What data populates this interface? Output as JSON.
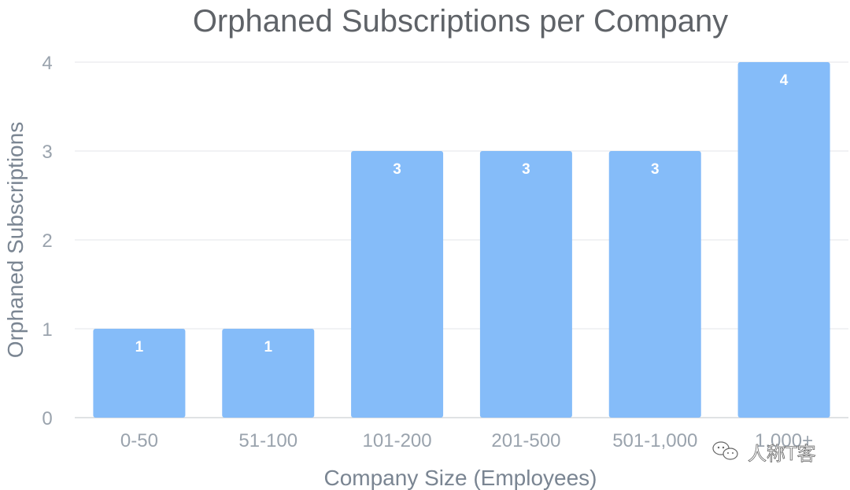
{
  "chart_data": {
    "type": "bar",
    "title": "Orphaned Subscriptions per Company",
    "xlabel": "Company Size (Employees)",
    "ylabel": "Orphaned Subscriptions",
    "categories": [
      "0-50",
      "51-100",
      "101-200",
      "201-500",
      "501-1,000",
      "1,000+"
    ],
    "values": [
      1,
      1,
      3,
      3,
      3,
      4
    ],
    "data_labels": [
      "1",
      "1",
      "3",
      "3",
      "3",
      "4"
    ],
    "ylim": [
      0,
      4
    ],
    "yticks": [
      "0",
      "1",
      "2",
      "3",
      "4"
    ],
    "grid": true,
    "bar_color": "#85bcf9",
    "legend": "none"
  },
  "watermark": {
    "text": "人称T客",
    "icon": "wechat-icon"
  }
}
